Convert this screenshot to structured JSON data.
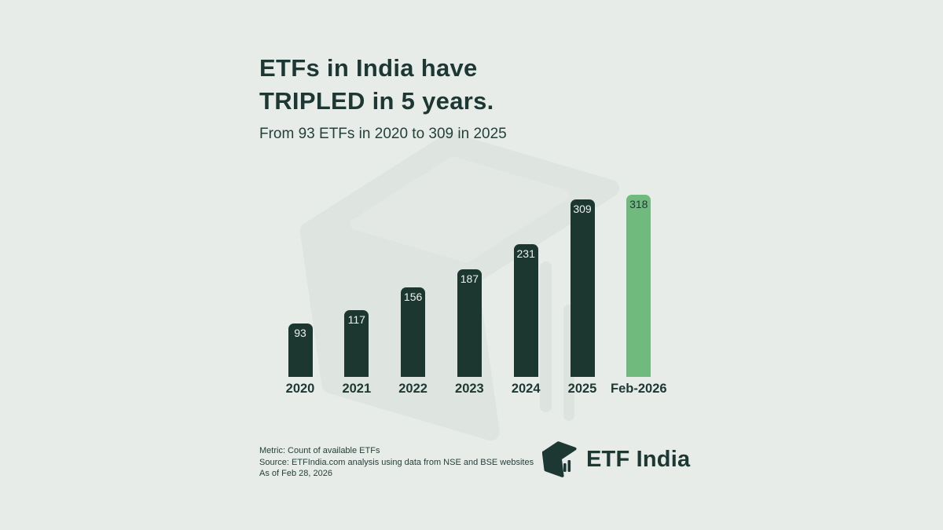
{
  "header": {
    "title_line1": "ETFs in India have",
    "title_line2": "TRIPLED in 5 years.",
    "subtitle": "From 93 ETFs in 2020 to 309 in 2025"
  },
  "chart_data": {
    "type": "bar",
    "categories": [
      "2020",
      "2021",
      "2022",
      "2023",
      "2024",
      "2025",
      "Feb-2026"
    ],
    "values": [
      93,
      117,
      156,
      187,
      231,
      309,
      318
    ],
    "title": "ETFs in India have TRIPLED in 5 years.",
    "subtitle": "From 93 ETFs in 2020 to 309 in 2025",
    "xlabel": "",
    "ylabel": "",
    "ylim": [
      0,
      330
    ],
    "grid": false,
    "legend": false,
    "value_labels": "inside-top",
    "highlight_index": 6
  },
  "footer": {
    "metric": "Metric: Count of available ETFs",
    "source": "Source: ETFIndia.com analysis using data from NSE and BSE websites",
    "as_of": "As of Feb 28, 2026"
  },
  "logo": {
    "text": "ETF India",
    "icon": "cube-with-bars-icon"
  },
  "colors": {
    "background": "#e7ece9",
    "ink": "#1d3833",
    "ink_soft": "#24403a",
    "bar_dark": "#1c3630",
    "bar_highlight": "#71ba7e",
    "value_label_light": "#eef2ef",
    "watermark_face": "#dee4df",
    "watermark_inner": "#e3e8e4",
    "ghost": "#dde3de"
  }
}
